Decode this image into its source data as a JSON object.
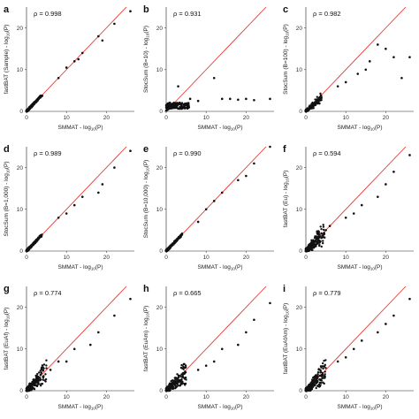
{
  "shared_xlabel": {
    "prefix": "SMMAT - log",
    "sub": "10",
    "suffix": "(P)"
  },
  "chart_data": [
    {
      "type": "scatter",
      "panel": "a",
      "rho": "ρ = 0.998",
      "ylabel": {
        "prefix": "fastBAT (Sample) - log",
        "sub": "10",
        "suffix": "(P)"
      },
      "xlim": [
        0,
        27
      ],
      "ylim": [
        0,
        25
      ],
      "xticks": [
        0,
        10,
        20
      ],
      "yticks": [
        0,
        10,
        20
      ],
      "ref_line": "y = x",
      "pattern": "tight",
      "corr": 0.998,
      "outliers": [
        [
          26,
          24
        ],
        [
          22,
          21
        ],
        [
          18,
          18
        ],
        [
          19,
          17
        ],
        [
          14,
          14
        ],
        [
          13,
          12.5
        ],
        [
          12,
          12
        ],
        [
          10,
          10.5
        ],
        [
          8,
          8
        ]
      ]
    },
    {
      "type": "scatter",
      "panel": "b",
      "rho": "ρ = 0.931",
      "ylabel": {
        "prefix": "StocSum (B=10) - log",
        "sub": "10",
        "suffix": "(P)"
      },
      "xlim": [
        0,
        27
      ],
      "ylim": [
        0,
        25
      ],
      "xticks": [
        0,
        10,
        20
      ],
      "yticks": [
        0,
        10,
        20
      ],
      "ref_line": "y = x",
      "pattern": "flat",
      "corr": 0.931,
      "outliers": [
        [
          3,
          6
        ],
        [
          6,
          3
        ],
        [
          8,
          2.5
        ],
        [
          12,
          8
        ],
        [
          14,
          3
        ],
        [
          16,
          3
        ],
        [
          18,
          2.8
        ],
        [
          20,
          3
        ],
        [
          22,
          2.7
        ],
        [
          26,
          3
        ]
      ]
    },
    {
      "type": "scatter",
      "panel": "c",
      "rho": "ρ = 0.982",
      "ylabel": {
        "prefix": "StocSum (B=100) - log",
        "sub": "10",
        "suffix": "(P)"
      },
      "xlim": [
        0,
        27
      ],
      "ylim": [
        0,
        25
      ],
      "xticks": [
        0,
        10,
        20
      ],
      "yticks": [
        0,
        10,
        20
      ],
      "ref_line": "y = x",
      "pattern": "mild",
      "corr": 0.982,
      "outliers": [
        [
          8,
          6
        ],
        [
          10,
          7
        ],
        [
          13,
          9
        ],
        [
          15,
          10
        ],
        [
          16,
          12
        ],
        [
          18,
          16
        ],
        [
          20,
          15
        ],
        [
          22,
          13
        ],
        [
          26,
          13
        ],
        [
          24,
          8
        ]
      ]
    },
    {
      "type": "scatter",
      "panel": "d",
      "rho": "ρ = 0.989",
      "ylabel": {
        "prefix": "StocSum (B=1,000) - log",
        "sub": "10",
        "suffix": "(P)"
      },
      "xlim": [
        0,
        27
      ],
      "ylim": [
        0,
        25
      ],
      "xticks": [
        0,
        10,
        20
      ],
      "yticks": [
        0,
        10,
        20
      ],
      "ref_line": "y = x",
      "pattern": "tight",
      "corr": 0.989,
      "outliers": [
        [
          26,
          24
        ],
        [
          22,
          20
        ],
        [
          18,
          14
        ],
        [
          19,
          16
        ],
        [
          14,
          13
        ],
        [
          12,
          11
        ],
        [
          10,
          9
        ],
        [
          8,
          8
        ]
      ]
    },
    {
      "type": "scatter",
      "panel": "e",
      "rho": "ρ = 0.990",
      "ylabel": {
        "prefix": "StocSum (B=10,000) - log",
        "sub": "10",
        "suffix": "(P)"
      },
      "xlim": [
        0,
        27
      ],
      "ylim": [
        0,
        25
      ],
      "xticks": [
        0,
        10,
        20
      ],
      "yticks": [
        0,
        10,
        20
      ],
      "ref_line": "y = x",
      "pattern": "tight",
      "corr": 0.99,
      "outliers": [
        [
          26,
          25
        ],
        [
          22,
          21
        ],
        [
          20,
          18
        ],
        [
          18,
          17
        ],
        [
          14,
          14
        ],
        [
          12,
          12
        ],
        [
          10,
          10
        ],
        [
          8,
          7
        ]
      ]
    },
    {
      "type": "scatter",
      "panel": "f",
      "rho": "ρ = 0.594",
      "ylabel": {
        "prefix": "fastBAT (Eu) - log",
        "sub": "10",
        "suffix": "(P)"
      },
      "xlim": [
        0,
        27
      ],
      "ylim": [
        0,
        25
      ],
      "xticks": [
        0,
        10,
        20
      ],
      "yticks": [
        0,
        10,
        20
      ],
      "ref_line": "y = x",
      "pattern": "wide",
      "corr": 0.594,
      "outliers": [
        [
          26,
          23
        ],
        [
          22,
          19
        ],
        [
          20,
          16
        ],
        [
          18,
          13
        ],
        [
          14,
          11
        ],
        [
          12,
          9
        ],
        [
          10,
          8
        ],
        [
          6,
          6
        ],
        [
          5,
          5
        ]
      ]
    },
    {
      "type": "scatter",
      "panel": "g",
      "rho": "ρ = 0.774",
      "ylabel": {
        "prefix": "fastBAT (EuAf) - log",
        "sub": "10",
        "suffix": "(P)"
      },
      "xlim": [
        0,
        27
      ],
      "ylim": [
        0,
        25
      ],
      "xticks": [
        0,
        10,
        20
      ],
      "yticks": [
        0,
        10,
        20
      ],
      "ref_line": "y = x",
      "pattern": "wide",
      "corr": 0.774,
      "outliers": [
        [
          26,
          22
        ],
        [
          22,
          18
        ],
        [
          18,
          14
        ],
        [
          16,
          11
        ],
        [
          12,
          10
        ],
        [
          10,
          7
        ],
        [
          8,
          7
        ],
        [
          6,
          5
        ]
      ]
    },
    {
      "type": "scatter",
      "panel": "h",
      "rho": "ρ = 0.665",
      "ylabel": {
        "prefix": "fastBAT (EuAm) - log",
        "sub": "10",
        "suffix": "(P)"
      },
      "xlim": [
        0,
        27
      ],
      "ylim": [
        0,
        25
      ],
      "xticks": [
        0,
        10,
        20
      ],
      "yticks": [
        0,
        10,
        20
      ],
      "ref_line": "y = x",
      "pattern": "wide",
      "corr": 0.665,
      "outliers": [
        [
          26,
          21
        ],
        [
          22,
          17
        ],
        [
          20,
          14
        ],
        [
          18,
          11
        ],
        [
          14,
          10
        ],
        [
          12,
          7
        ],
        [
          10,
          6
        ],
        [
          8,
          5
        ]
      ]
    },
    {
      "type": "scatter",
      "panel": "i",
      "rho": "ρ = 0.779",
      "ylabel": {
        "prefix": "fastBAT (EuAfAm) - log",
        "sub": "10",
        "suffix": "(P)"
      },
      "xlim": [
        0,
        27
      ],
      "ylim": [
        0,
        25
      ],
      "xticks": [
        0,
        10,
        20
      ],
      "yticks": [
        0,
        10,
        20
      ],
      "ref_line": "y = x",
      "pattern": "wide",
      "corr": 0.779,
      "outliers": [
        [
          26,
          22
        ],
        [
          22,
          18
        ],
        [
          20,
          16
        ],
        [
          18,
          14
        ],
        [
          14,
          12
        ],
        [
          12,
          10
        ],
        [
          10,
          8
        ],
        [
          8,
          7
        ]
      ]
    }
  ]
}
